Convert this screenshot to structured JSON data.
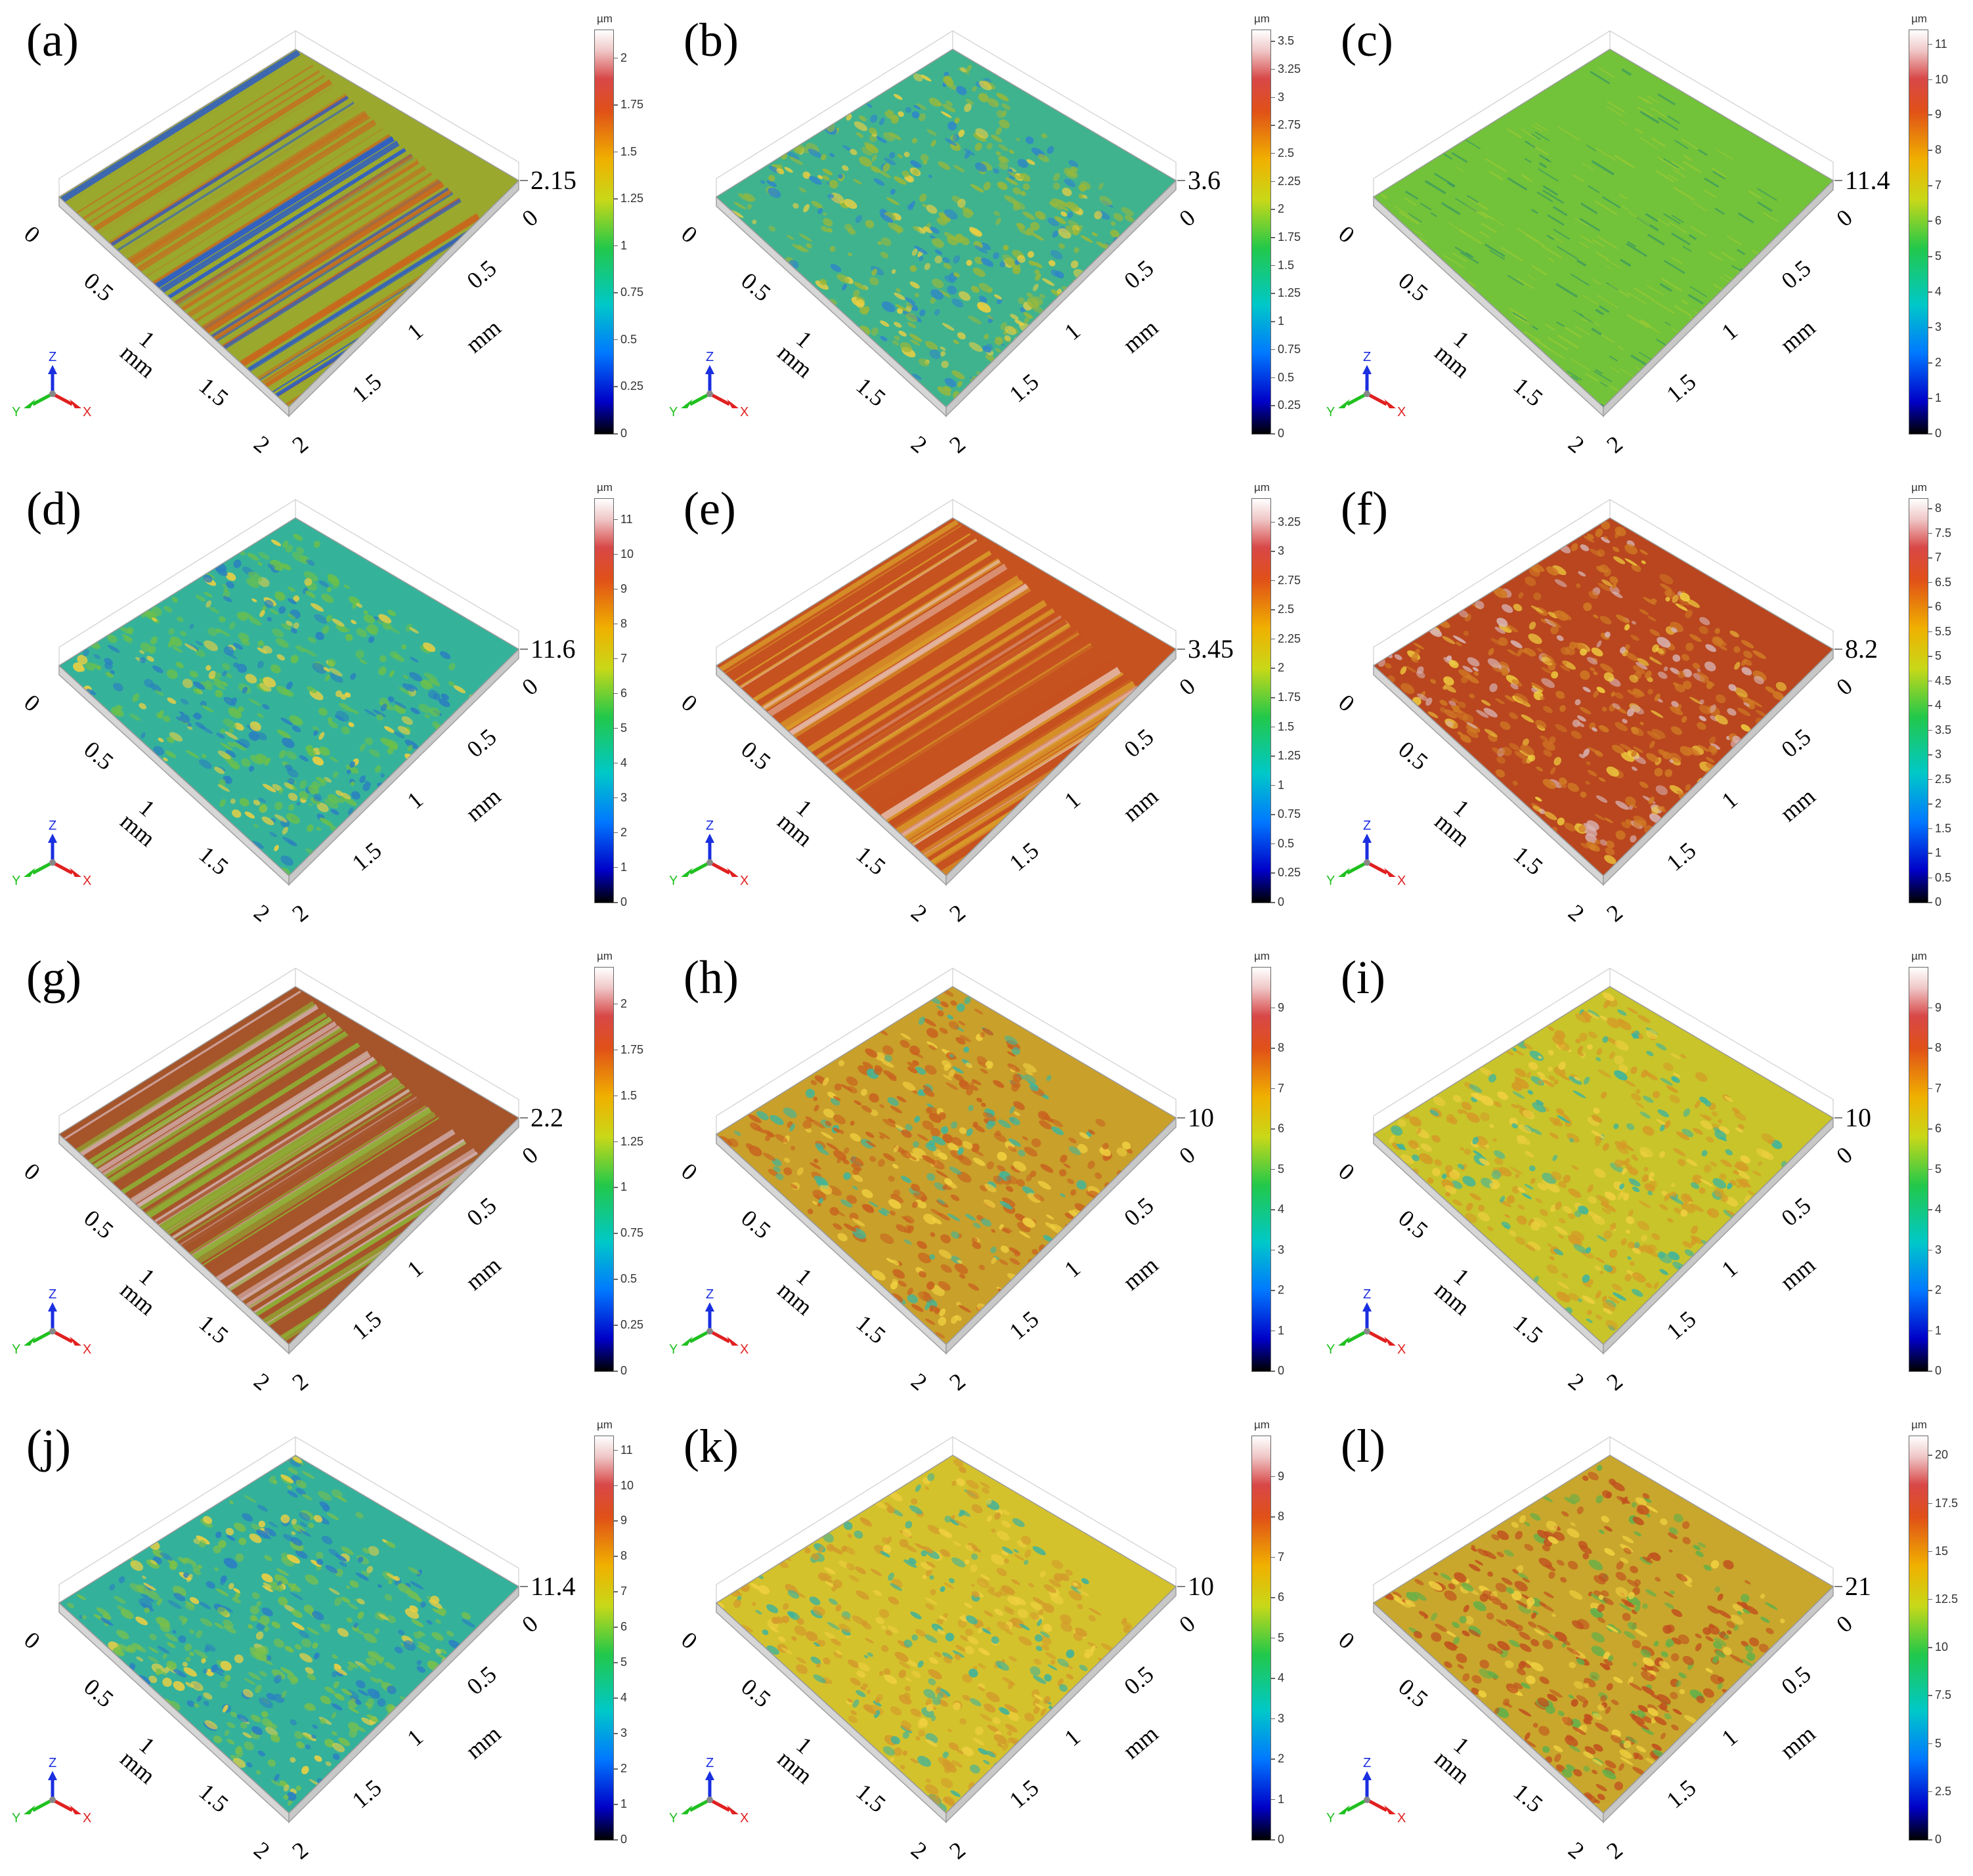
{
  "axis_unit": "mm",
  "colorbar_unit": "µm",
  "triad": {
    "x": "X",
    "y": "Y",
    "z": "Z"
  },
  "panels": [
    {
      "label": "(a)",
      "z_max": "2.15",
      "cb_ticks": [
        "0",
        "0.25",
        "0.5",
        "0.75",
        "1",
        "1.25",
        "1.5",
        "1.75",
        "2"
      ],
      "cb_max": 2.15,
      "x_ticks": [
        "0",
        "0.5",
        "1",
        "1.5",
        "2"
      ],
      "y_ticks": [
        "0",
        "0.5",
        "1",
        "1.5",
        "2"
      ],
      "surface": {
        "base": "#9aa82e",
        "tone": "#c86a1e",
        "accent": "#2b5cc9",
        "pattern": "stripes"
      }
    },
    {
      "label": "(b)",
      "z_max": "3.6",
      "cb_ticks": [
        "0",
        "0.25",
        "0.5",
        "0.75",
        "1",
        "1.25",
        "1.5",
        "1.75",
        "2",
        "2.25",
        "2.5",
        "2.75",
        "3",
        "3.25",
        "3.5"
      ],
      "cb_max": 3.6,
      "x_ticks": [
        "0",
        "0.5",
        "1",
        "1.5",
        "2"
      ],
      "y_ticks": [
        "0",
        "0.5",
        "1",
        "1.5",
        "2"
      ],
      "surface": {
        "base": "#3fb38e",
        "tone": "#9ab83a",
        "accent": "#2f86c9",
        "pattern": "speckle"
      }
    },
    {
      "label": "(c)",
      "z_max": "11.4",
      "cb_ticks": [
        "0",
        "1",
        "2",
        "3",
        "4",
        "5",
        "6",
        "7",
        "8",
        "9",
        "10",
        "11"
      ],
      "cb_max": 11.4,
      "x_ticks": [
        "0",
        "0.5",
        "1",
        "1.5",
        "2"
      ],
      "y_ticks": [
        "0",
        "0.5",
        "1",
        "1.5",
        "2"
      ],
      "surface": {
        "base": "#72c23a",
        "tone": "#9acb34",
        "accent": "#2d8f6a",
        "pattern": "streaks"
      }
    },
    {
      "label": "(d)",
      "z_max": "11.6",
      "cb_ticks": [
        "0",
        "1",
        "2",
        "3",
        "4",
        "5",
        "6",
        "7",
        "8",
        "9",
        "10",
        "11"
      ],
      "cb_max": 11.6,
      "x_ticks": [
        "0",
        "0.5",
        "1",
        "1.5",
        "2"
      ],
      "y_ticks": [
        "0",
        "0.5",
        "1",
        "1.5",
        "2"
      ],
      "surface": {
        "base": "#35b39a",
        "tone": "#6cc04a",
        "accent": "#2a7fc0",
        "pattern": "speckle"
      }
    },
    {
      "label": "(e)",
      "z_max": "3.45",
      "cb_ticks": [
        "0",
        "0.25",
        "0.5",
        "0.75",
        "1",
        "1.25",
        "1.5",
        "1.75",
        "2",
        "2.25",
        "2.5",
        "2.75",
        "3",
        "3.25"
      ],
      "cb_max": 3.45,
      "x_ticks": [
        "0",
        "0.5",
        "1",
        "1.5",
        "2"
      ],
      "y_ticks": [
        "0",
        "0.5",
        "1",
        "1.5",
        "2"
      ],
      "surface": {
        "base": "#c6521f",
        "tone": "#d99a2a",
        "accent": "#e6b9a8",
        "pattern": "stripes"
      }
    },
    {
      "label": "(f)",
      "z_max": "8.2",
      "cb_ticks": [
        "0",
        "0.5",
        "1",
        "1.5",
        "2",
        "2.5",
        "3",
        "3.5",
        "4",
        "4.5",
        "5",
        "5.5",
        "6",
        "6.5",
        "7",
        "7.5",
        "8"
      ],
      "cb_max": 8.2,
      "x_ticks": [
        "0",
        "0.5",
        "1",
        "1.5",
        "2"
      ],
      "y_ticks": [
        "0",
        "0.5",
        "1",
        "1.5",
        "2"
      ],
      "surface": {
        "base": "#b9461e",
        "tone": "#d07a24",
        "accent": "#d8b3b3",
        "pattern": "speckle"
      }
    },
    {
      "label": "(g)",
      "z_max": "2.2",
      "cb_ticks": [
        "0",
        "0.25",
        "0.5",
        "0.75",
        "1",
        "1.25",
        "1.5",
        "1.75",
        "2"
      ],
      "cb_max": 2.2,
      "x_ticks": [
        "0",
        "0.5",
        "1",
        "1.5",
        "2"
      ],
      "y_ticks": [
        "0",
        "0.5",
        "1",
        "1.5",
        "2"
      ],
      "surface": {
        "base": "#a6542a",
        "tone": "#8fae35",
        "accent": "#d4b2b2",
        "pattern": "stripes"
      }
    },
    {
      "label": "(h)",
      "z_max": "10",
      "cb_ticks": [
        "0",
        "1",
        "2",
        "3",
        "4",
        "5",
        "6",
        "7",
        "8",
        "9"
      ],
      "cb_max": 10,
      "x_ticks": [
        "0",
        "0.5",
        "1",
        "1.5",
        "2"
      ],
      "y_ticks": [
        "0",
        "0.5",
        "1",
        "1.5",
        "2"
      ],
      "surface": {
        "base": "#c9a02a",
        "tone": "#c8621f",
        "accent": "#3fb59b",
        "pattern": "speckle"
      }
    },
    {
      "label": "(i)",
      "z_max": "10",
      "cb_ticks": [
        "0",
        "1",
        "2",
        "3",
        "4",
        "5",
        "6",
        "7",
        "8",
        "9"
      ],
      "cb_max": 10,
      "x_ticks": [
        "0",
        "0.5",
        "1",
        "1.5",
        "2"
      ],
      "y_ticks": [
        "0",
        "0.5",
        "1",
        "1.5",
        "2"
      ],
      "surface": {
        "base": "#c8c42a",
        "tone": "#d59a26",
        "accent": "#3bb4a0",
        "pattern": "speckle"
      }
    },
    {
      "label": "(j)",
      "z_max": "11.4",
      "cb_ticks": [
        "0",
        "1",
        "2",
        "3",
        "4",
        "5",
        "6",
        "7",
        "8",
        "9",
        "10",
        "11"
      ],
      "cb_max": 11.4,
      "x_ticks": [
        "0",
        "0.5",
        "1",
        "1.5",
        "2"
      ],
      "y_ticks": [
        "0",
        "0.5",
        "1",
        "1.5",
        "2"
      ],
      "surface": {
        "base": "#33b19b",
        "tone": "#7cc04a",
        "accent": "#2b7ec3",
        "pattern": "speckle"
      }
    },
    {
      "label": "(k)",
      "z_max": "10",
      "cb_ticks": [
        "0",
        "1",
        "2",
        "3",
        "4",
        "5",
        "6",
        "7",
        "8",
        "9"
      ],
      "cb_max": 10,
      "x_ticks": [
        "0",
        "0.5",
        "1",
        "1.5",
        "2"
      ],
      "y_ticks": [
        "0",
        "0.5",
        "1",
        "1.5",
        "2"
      ],
      "surface": {
        "base": "#d4c22c",
        "tone": "#d39a2b",
        "accent": "#3cb29e",
        "pattern": "speckle"
      }
    },
    {
      "label": "(l)",
      "z_max": "21",
      "cb_ticks": [
        "0",
        "2.5",
        "5",
        "7.5",
        "10",
        "12.5",
        "15",
        "17.5",
        "20"
      ],
      "cb_max": 21,
      "x_ticks": [
        "0",
        "0.5",
        "1",
        "1.5",
        "2"
      ],
      "y_ticks": [
        "0",
        "0.5",
        "1",
        "1.5",
        "2"
      ],
      "surface": {
        "base": "#c9a72c",
        "tone": "#c0501e",
        "accent": "#5fb04a",
        "pattern": "speckle"
      }
    }
  ]
}
